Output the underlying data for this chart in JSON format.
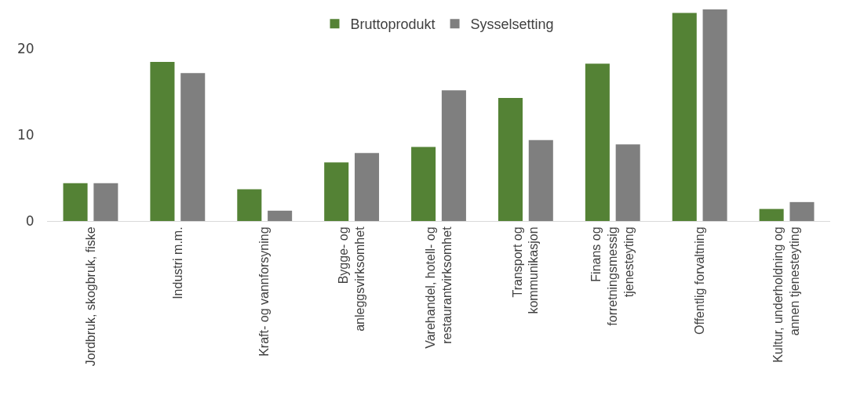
{
  "chart_data": {
    "type": "bar",
    "categories": [
      "Jordbruk, skogbruk, fiske",
      "Industri m.m.",
      "Kraft- og vannforsyning",
      "Bygge- og\nanleggsvirksomhet",
      "Varehandel, hotell- og\nrestaurantvirksomhet",
      "Transport og\nkommunikasjon",
      "Finans og\nforretningsmessig\ntjenesteyting",
      "Offentlig forvaltning",
      "Kultur, underholdning og\nannen tjenesteyting"
    ],
    "series": [
      {
        "name": "Bruttoprodukt",
        "color": "#548235",
        "values": [
          4.4,
          18.5,
          3.7,
          6.8,
          8.6,
          14.3,
          18.3,
          24.2,
          1.4
        ]
      },
      {
        "name": "Sysselsetting",
        "color": "#7f7f7f",
        "values": [
          4.4,
          17.2,
          1.2,
          7.9,
          15.2,
          9.4,
          8.9,
          24.6,
          2.2
        ]
      }
    ],
    "ylim": [
      0,
      24.6
    ],
    "yticks": [
      0,
      10,
      20
    ],
    "grid": false,
    "legend": "top"
  }
}
